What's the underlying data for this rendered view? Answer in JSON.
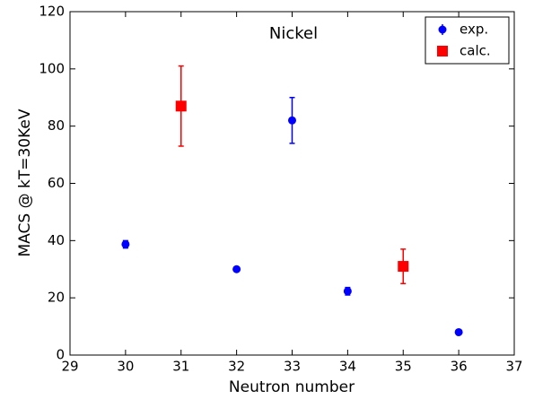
{
  "chart_data": {
    "type": "scatter",
    "title": "Nickel",
    "x_label": "Neutron number",
    "y_label": "MACS @ kT=30KeV",
    "xlim": [
      29,
      37
    ],
    "xticks": [
      29,
      30,
      31,
      32,
      33,
      34,
      35,
      36,
      37
    ],
    "ylim": [
      0,
      120
    ],
    "yticks": [
      0,
      20,
      40,
      60,
      80,
      100,
      120
    ],
    "legend": "upper right",
    "series": [
      {
        "name": "exp.",
        "color": "#0000ff",
        "marker": "circle",
        "x": [
          30,
          32,
          33,
          34,
          36
        ],
        "values": [
          38.7,
          30,
          82,
          22.3,
          8
        ],
        "errors": [
          1.3,
          0.6,
          8,
          1.3,
          0.3
        ]
      },
      {
        "name": "calc.",
        "color": "#ff0000",
        "marker": "square",
        "x": [
          31,
          35
        ],
        "values": [
          87,
          31
        ],
        "errors": [
          14,
          6
        ]
      }
    ]
  }
}
